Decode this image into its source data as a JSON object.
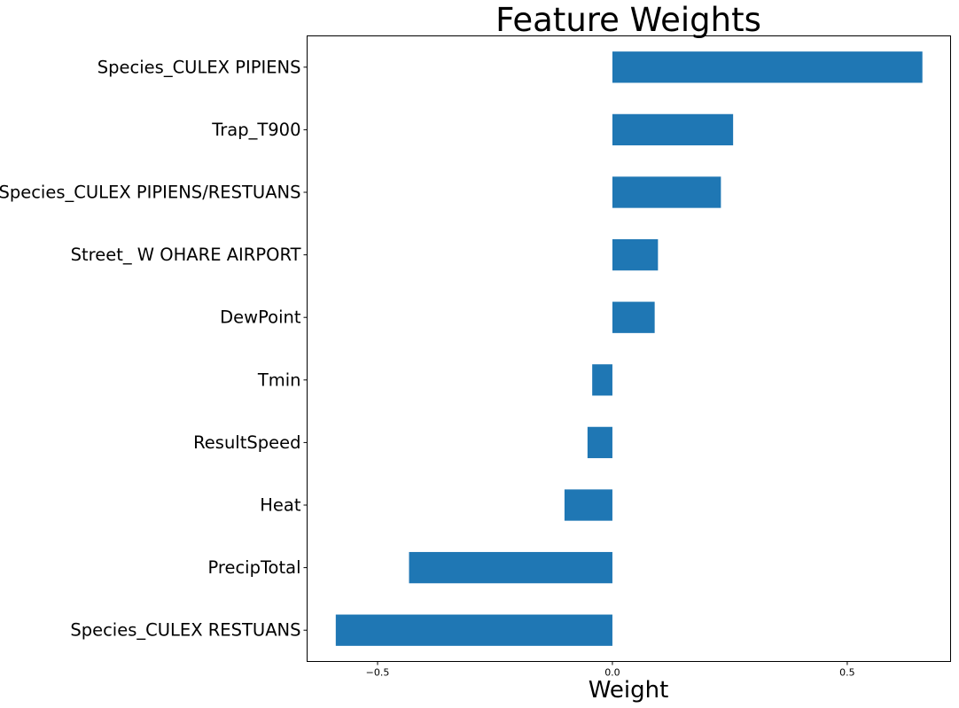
{
  "chart_data": {
    "type": "bar",
    "orientation": "horizontal",
    "title": "Feature Weights",
    "xlabel": "Weight",
    "ylabel": "",
    "xlim": [
      -0.65,
      0.72
    ],
    "xticks": [
      -0.5,
      0.0,
      0.5
    ],
    "xtick_labels": [
      "−0.5",
      "0.0",
      "0.5"
    ],
    "categories": [
      "Species_CULEX PIPIENS",
      "Trap_T900",
      "Species_CULEX PIPIENS/RESTUANS",
      "Street_ W OHARE AIRPORT",
      "DewPoint",
      "Tmin",
      "ResultSpeed",
      "Heat",
      "PrecipTotal",
      "Species_CULEX RESTUANS"
    ],
    "values": [
      0.66,
      0.257,
      0.231,
      0.097,
      0.09,
      -0.043,
      -0.053,
      -0.102,
      -0.433,
      -0.589
    ],
    "bar_color": "#1f77b4",
    "grid": false,
    "legend": false
  }
}
